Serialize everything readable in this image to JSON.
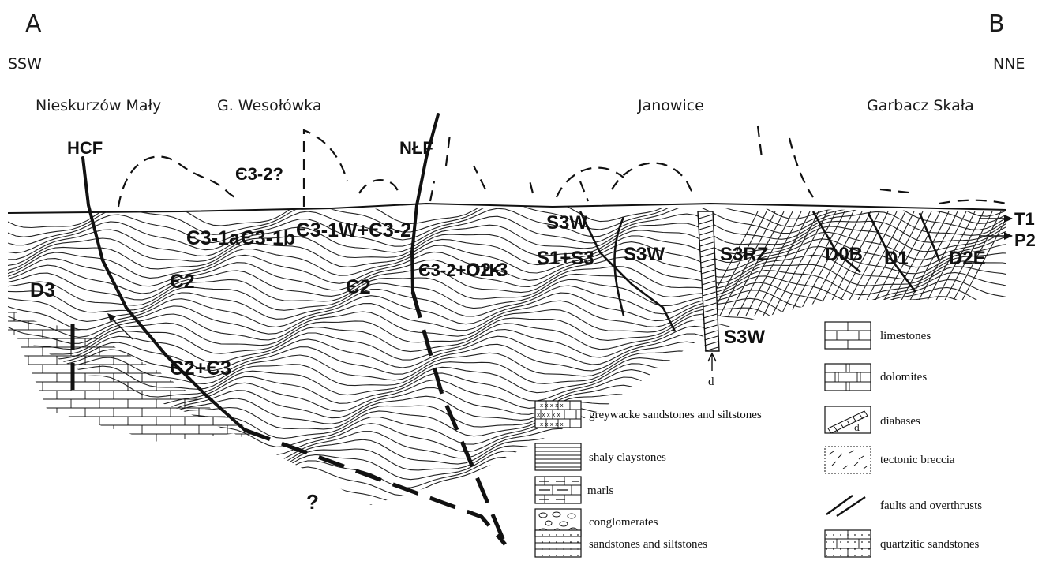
{
  "endpoints": {
    "left_letter": "A",
    "right_letter": "B",
    "left_dir": "SSW",
    "right_dir": "NNE"
  },
  "localities": [
    "Nieskurzów Mały",
    "G. Wesołówka",
    "Janowice",
    "Garbacz Skała"
  ],
  "faults": {
    "hcf": "HCF",
    "nlf": "NŁF",
    "unknown": "?"
  },
  "units": {
    "d3": "D3",
    "e3_2q": "Є3-2?",
    "e3_1a": "Є3-1a",
    "e3_1b": "Є3-1b",
    "e3_1w_e3_2": "Є3-1W+Є3-2",
    "e2_left": "Є2",
    "e2_mid": "Є2",
    "e2_e3": "Є2+Є3",
    "e3_2_o1k": "Є3-2+O1K",
    "o2_3": "O2-3",
    "s1_s3": "S1+S3",
    "s3w_top": "S3W",
    "s3w_mid": "S3W",
    "s3rz": "S3RZ",
    "s3w_low": "S3W",
    "d0b": "D0B",
    "d1": "D1",
    "d2e": "D2E",
    "t1": "T1",
    "p2": "P2",
    "dyke": "d"
  },
  "legend": {
    "left": [
      {
        "icon": "greywacke-pattern",
        "label": "greywacke sandstones and siltstones"
      },
      {
        "icon": "shaly-claystone-pattern",
        "label": "shaly claystones"
      },
      {
        "icon": "marl-pattern",
        "label": "marls"
      },
      {
        "icon": "conglomerate-pattern",
        "label": "conglomerates"
      },
      {
        "icon": "sandstone-siltstone-pattern",
        "label": "sandstones and siltstones"
      }
    ],
    "right": [
      {
        "icon": "limestone-pattern",
        "label": "limestones"
      },
      {
        "icon": "dolomite-pattern",
        "label": "dolomites"
      },
      {
        "icon": "diabase-pattern",
        "label": "diabases"
      },
      {
        "icon": "tectonic-breccia-pattern",
        "label": "tectonic breccia"
      },
      {
        "icon": "fault-symbol",
        "label": "faults and overthrusts"
      },
      {
        "icon": "quartzitic-sandstone-pattern",
        "label": "quartzitic sandstones"
      }
    ]
  }
}
